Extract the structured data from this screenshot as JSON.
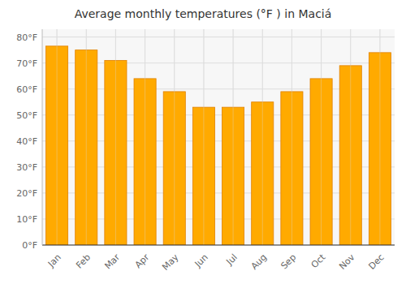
{
  "chart_data": {
    "type": "bar",
    "title": "Average monthly temperatures (°F ) in Maciá",
    "categories": [
      "Jan",
      "Feb",
      "Mar",
      "Apr",
      "May",
      "Jun",
      "Jul",
      "Aug",
      "Sep",
      "Oct",
      "Nov",
      "Dec"
    ],
    "values": [
      76.5,
      75.0,
      71.0,
      64.0,
      59.0,
      53.0,
      53.0,
      55.0,
      59.0,
      64.0,
      69.0,
      74.0
    ],
    "color": "#FFAA00",
    "ylim": [
      0,
      83
    ],
    "yticks": [
      {
        "value": 0,
        "label": "0°F"
      },
      {
        "value": 10,
        "label": "10°F"
      },
      {
        "value": 20,
        "label": "20°F"
      },
      {
        "value": 30,
        "label": "30°F"
      },
      {
        "value": 40,
        "label": "40°F"
      },
      {
        "value": 50,
        "label": "50°F"
      },
      {
        "value": 60,
        "label": "60°F"
      },
      {
        "value": 70,
        "label": "70°F"
      },
      {
        "value": 80,
        "label": "80°F"
      }
    ],
    "grid": true
  }
}
